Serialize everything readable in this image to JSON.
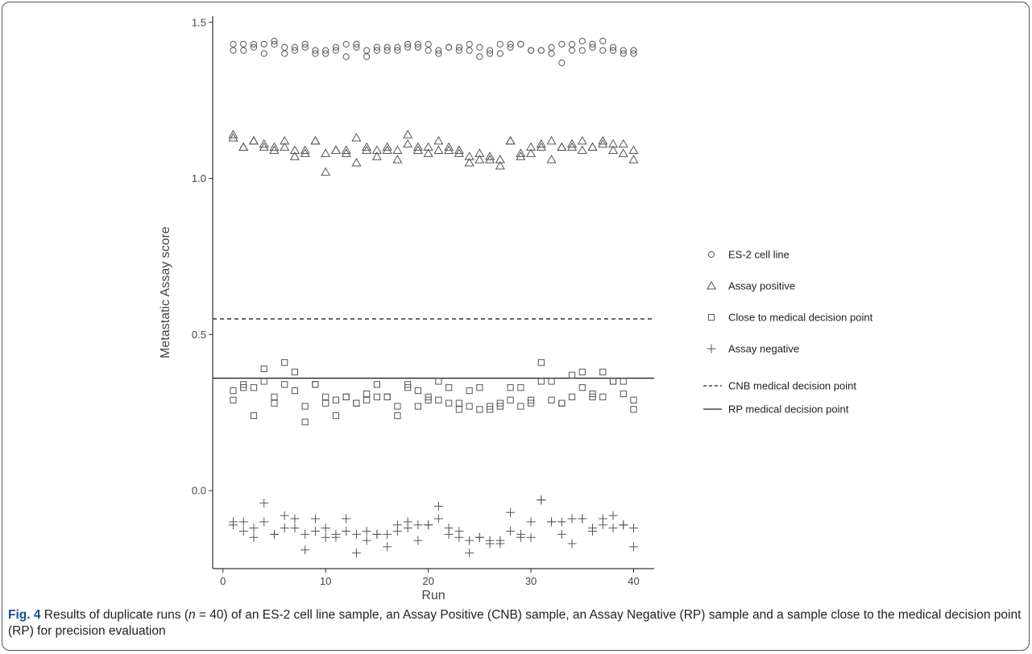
{
  "chart_data": {
    "type": "scatter",
    "xlabel": "Run",
    "ylabel": "Metastatic Assay score",
    "xlim": [
      -1,
      42
    ],
    "ylim": [
      -0.25,
      1.52
    ],
    "xticks": [
      0,
      10,
      20,
      30,
      40
    ],
    "yticks": [
      0.0,
      0.5,
      1.0,
      1.5
    ],
    "xtick_labels": [
      "0",
      "10",
      "20",
      "30",
      "40"
    ],
    "ytick_labels": [
      "0.0",
      "0.5",
      "1.0",
      "1.5"
    ],
    "grid": false,
    "legend_position": "right",
    "series": [
      {
        "name": "ES-2 cell line",
        "marker": "circle",
        "x": [
          1,
          1,
          2,
          2,
          3,
          3,
          4,
          4,
          5,
          5,
          6,
          6,
          7,
          7,
          8,
          8,
          9,
          9,
          10,
          10,
          11,
          11,
          12,
          12,
          13,
          13,
          14,
          14,
          15,
          15,
          16,
          16,
          17,
          17,
          18,
          18,
          19,
          19,
          20,
          20,
          21,
          21,
          22,
          22,
          23,
          23,
          24,
          24,
          25,
          25,
          26,
          26,
          27,
          27,
          28,
          28,
          29,
          29,
          30,
          30,
          31,
          31,
          32,
          32,
          33,
          33,
          34,
          34,
          35,
          35,
          36,
          36,
          37,
          37,
          38,
          38,
          39,
          39,
          40,
          40
        ],
        "y": [
          1.43,
          1.41,
          1.43,
          1.41,
          1.43,
          1.42,
          1.43,
          1.4,
          1.44,
          1.43,
          1.42,
          1.4,
          1.41,
          1.42,
          1.43,
          1.42,
          1.4,
          1.41,
          1.41,
          1.4,
          1.42,
          1.41,
          1.43,
          1.39,
          1.43,
          1.42,
          1.41,
          1.39,
          1.42,
          1.41,
          1.41,
          1.42,
          1.42,
          1.41,
          1.43,
          1.42,
          1.43,
          1.42,
          1.43,
          1.41,
          1.4,
          1.41,
          1.42,
          1.42,
          1.41,
          1.42,
          1.43,
          1.41,
          1.42,
          1.39,
          1.41,
          1.4,
          1.43,
          1.4,
          1.43,
          1.42,
          1.43,
          1.43,
          1.41,
          1.41,
          1.41,
          1.41,
          1.4,
          1.42,
          1.43,
          1.37,
          1.43,
          1.41,
          1.44,
          1.41,
          1.42,
          1.43,
          1.41,
          1.44,
          1.42,
          1.41,
          1.4,
          1.41,
          1.4,
          1.41
        ]
      },
      {
        "name": "Assay positive",
        "marker": "triangle",
        "x": [
          1,
          1,
          2,
          2,
          3,
          3,
          4,
          4,
          5,
          5,
          6,
          6,
          7,
          7,
          8,
          8,
          9,
          9,
          10,
          10,
          11,
          11,
          12,
          12,
          13,
          13,
          14,
          14,
          15,
          15,
          16,
          16,
          17,
          17,
          18,
          18,
          19,
          19,
          20,
          20,
          21,
          21,
          22,
          22,
          23,
          23,
          24,
          24,
          25,
          25,
          26,
          26,
          27,
          27,
          28,
          28,
          29,
          29,
          30,
          30,
          31,
          31,
          32,
          32,
          33,
          33,
          34,
          34,
          35,
          35,
          36,
          36,
          37,
          37,
          38,
          38,
          39,
          39,
          40,
          40
        ],
        "y": [
          1.14,
          1.13,
          1.1,
          1.1,
          1.12,
          1.12,
          1.11,
          1.1,
          1.1,
          1.09,
          1.12,
          1.1,
          1.09,
          1.07,
          1.09,
          1.08,
          1.12,
          1.12,
          1.08,
          1.02,
          1.09,
          1.09,
          1.09,
          1.08,
          1.13,
          1.05,
          1.1,
          1.09,
          1.07,
          1.09,
          1.1,
          1.09,
          1.09,
          1.06,
          1.14,
          1.11,
          1.09,
          1.1,
          1.1,
          1.08,
          1.12,
          1.09,
          1.1,
          1.09,
          1.09,
          1.08,
          1.07,
          1.05,
          1.08,
          1.06,
          1.07,
          1.06,
          1.06,
          1.04,
          1.12,
          1.12,
          1.08,
          1.07,
          1.08,
          1.1,
          1.11,
          1.1,
          1.12,
          1.06,
          1.1,
          1.1,
          1.11,
          1.1,
          1.12,
          1.09,
          1.1,
          1.1,
          1.12,
          1.11,
          1.11,
          1.09,
          1.11,
          1.08,
          1.09,
          1.06
        ]
      },
      {
        "name": "Close to medical decision point",
        "marker": "square",
        "x": [
          1,
          1,
          2,
          2,
          3,
          3,
          4,
          4,
          5,
          5,
          6,
          6,
          7,
          7,
          8,
          8,
          9,
          9,
          10,
          10,
          11,
          11,
          12,
          12,
          13,
          13,
          14,
          14,
          15,
          15,
          16,
          16,
          17,
          17,
          18,
          18,
          19,
          19,
          20,
          20,
          21,
          21,
          22,
          22,
          23,
          23,
          24,
          24,
          25,
          25,
          26,
          26,
          27,
          27,
          28,
          28,
          29,
          29,
          30,
          30,
          31,
          31,
          32,
          32,
          33,
          33,
          34,
          34,
          35,
          35,
          36,
          36,
          37,
          37,
          38,
          38,
          39,
          39,
          40,
          40
        ],
        "y": [
          0.32,
          0.29,
          0.33,
          0.34,
          0.33,
          0.24,
          0.35,
          0.39,
          0.3,
          0.28,
          0.41,
          0.34,
          0.32,
          0.38,
          0.27,
          0.22,
          0.34,
          0.34,
          0.3,
          0.28,
          0.29,
          0.24,
          0.3,
          0.3,
          0.28,
          0.28,
          0.31,
          0.29,
          0.34,
          0.3,
          0.3,
          0.3,
          0.27,
          0.24,
          0.34,
          0.33,
          0.32,
          0.27,
          0.29,
          0.3,
          0.29,
          0.35,
          0.33,
          0.28,
          0.26,
          0.28,
          0.32,
          0.27,
          0.33,
          0.26,
          0.27,
          0.26,
          0.27,
          0.28,
          0.29,
          0.33,
          0.33,
          0.27,
          0.29,
          0.28,
          0.41,
          0.35,
          0.35,
          0.29,
          0.28,
          0.28,
          0.37,
          0.3,
          0.38,
          0.33,
          0.31,
          0.3,
          0.38,
          0.3,
          0.35,
          0.35,
          0.31,
          0.35,
          0.29,
          0.26
        ]
      },
      {
        "name": "Assay negative",
        "marker": "plus",
        "x": [
          1,
          1,
          2,
          2,
          3,
          3,
          4,
          4,
          5,
          5,
          6,
          6,
          7,
          7,
          8,
          8,
          9,
          9,
          10,
          10,
          11,
          11,
          12,
          12,
          13,
          13,
          14,
          14,
          15,
          15,
          16,
          16,
          17,
          17,
          18,
          18,
          19,
          19,
          20,
          20,
          21,
          21,
          22,
          22,
          23,
          23,
          24,
          24,
          25,
          25,
          26,
          26,
          27,
          27,
          28,
          28,
          29,
          29,
          30,
          30,
          31,
          31,
          32,
          32,
          33,
          33,
          34,
          34,
          35,
          35,
          36,
          36,
          37,
          37,
          38,
          38,
          39,
          39,
          40,
          40
        ],
        "y": [
          -0.1,
          -0.11,
          -0.1,
          -0.13,
          -0.12,
          -0.15,
          -0.04,
          -0.1,
          -0.14,
          -0.14,
          -0.08,
          -0.12,
          -0.09,
          -0.12,
          -0.14,
          -0.19,
          -0.09,
          -0.13,
          -0.12,
          -0.15,
          -0.14,
          -0.15,
          -0.09,
          -0.13,
          -0.14,
          -0.2,
          -0.13,
          -0.16,
          -0.14,
          -0.14,
          -0.14,
          -0.18,
          -0.11,
          -0.13,
          -0.1,
          -0.12,
          -0.11,
          -0.16,
          -0.11,
          -0.11,
          -0.05,
          -0.09,
          -0.12,
          -0.14,
          -0.13,
          -0.15,
          -0.2,
          -0.16,
          -0.15,
          -0.15,
          -0.16,
          -0.17,
          -0.16,
          -0.17,
          -0.07,
          -0.13,
          -0.14,
          -0.15,
          -0.1,
          -0.15,
          -0.03,
          -0.03,
          -0.1,
          -0.1,
          -0.1,
          -0.14,
          -0.09,
          -0.17,
          -0.09,
          -0.09,
          -0.12,
          -0.13,
          -0.09,
          -0.11,
          -0.08,
          -0.12,
          -0.11,
          -0.11,
          -0.12,
          -0.18
        ]
      }
    ],
    "reference_lines": [
      {
        "name": "CNB medical decision point",
        "y": 0.55,
        "style": "dashed"
      },
      {
        "name": "RP medical decision point",
        "y": 0.36,
        "style": "solid"
      }
    ]
  },
  "caption": {
    "label": "Fig. 4",
    "text_before_n": " Results of duplicate runs (",
    "n_var": "n",
    "text_after_n": " = 40) of an ES-2 cell line sample, an Assay Positive (CNB) sample, an Assay Negative (RP) sample and a sample close to the medical decision point (RP) for precision evaluation"
  },
  "colors": {
    "marker": "#555555",
    "axis": "#333333",
    "caption_label": "#1a4f93"
  }
}
